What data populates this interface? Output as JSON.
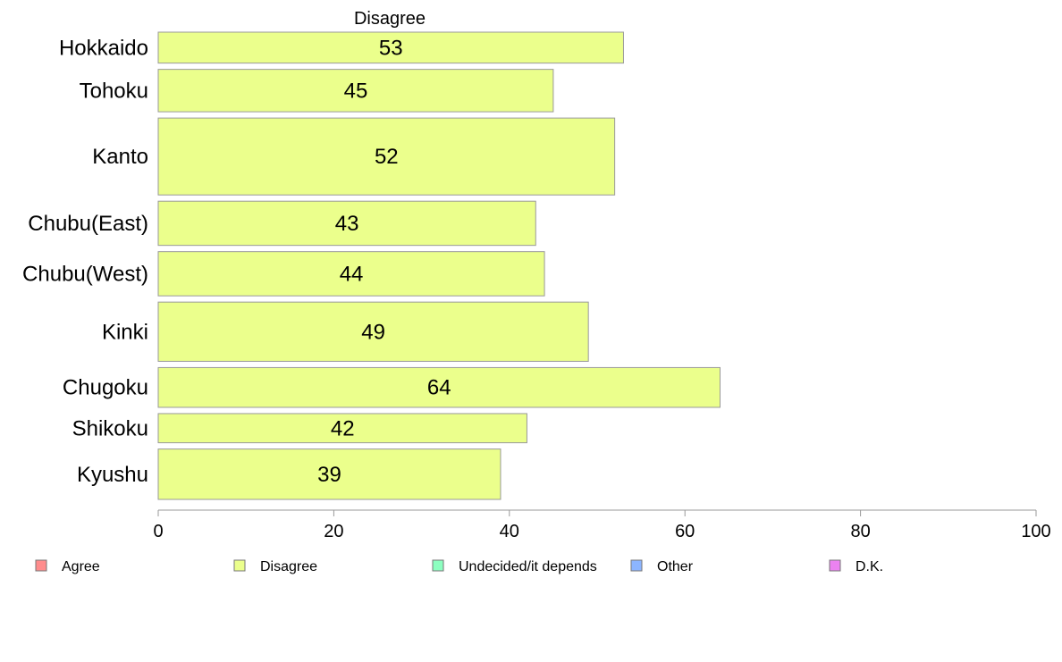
{
  "chart_data": {
    "type": "bar",
    "orientation": "horizontal",
    "title": "Disagree",
    "categories": [
      "Hokkaido",
      "Tohoku",
      "Kanto",
      "Chubu(East)",
      "Chubu(West)",
      "Kinki",
      "Chugoku",
      "Shikoku",
      "Kyushu"
    ],
    "values": [
      53,
      45,
      52,
      43,
      44,
      49,
      64,
      42,
      39
    ],
    "band_weights": [
      35,
      48,
      87,
      50,
      50,
      67,
      45,
      33,
      57
    ],
    "value_labels": [
      "53",
      "45",
      "52",
      "43",
      "44",
      "49",
      "64",
      "42",
      "39"
    ],
    "xlim": [
      0,
      100
    ],
    "xticks": [
      "0",
      "20",
      "40",
      "60",
      "80",
      "100"
    ],
    "bar_color": "#EBFF8C",
    "bar_stroke": "#999999",
    "grid": false,
    "legend": {
      "placement": "bottom",
      "items": [
        {
          "label": "Agree",
          "color": "#FF8C8C"
        },
        {
          "label": "Disagree",
          "color": "#EBFF8C"
        },
        {
          "label": "Undecided/it depends",
          "color": "#8CFFC0"
        },
        {
          "label": "Other",
          "color": "#8CB5FF"
        },
        {
          "label": "D.K.",
          "color": "#EB82F0"
        }
      ]
    }
  }
}
